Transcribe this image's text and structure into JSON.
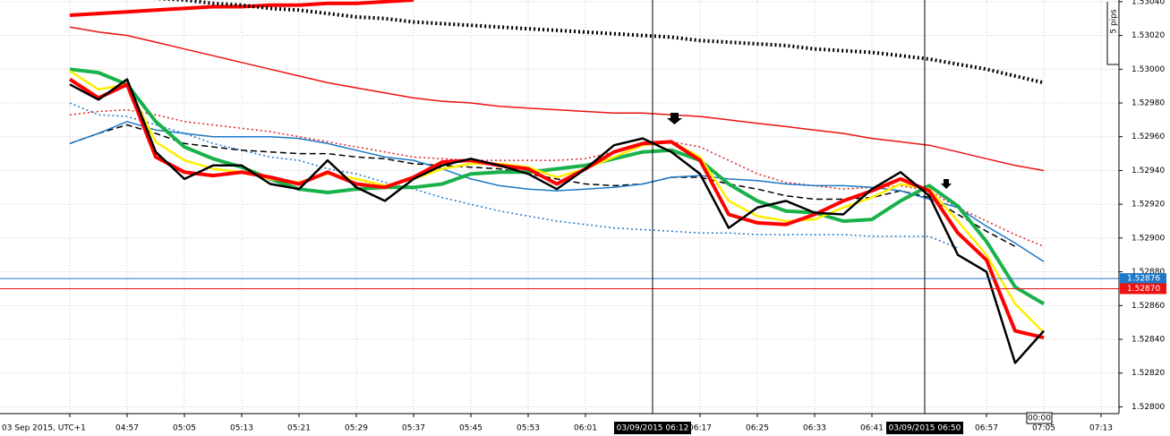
{
  "chart_data": {
    "type": "line",
    "categories": [
      "03 Sep 2015, UTC+1",
      null,
      "04:57",
      null,
      "05:05",
      null,
      "05:13",
      null,
      "05:21",
      null,
      "05:29",
      null,
      "05:37",
      null,
      "05:45",
      null,
      "05:53",
      null,
      "06:01",
      null,
      null,
      null,
      "06:17",
      null,
      "06:25",
      null,
      "06:33",
      null,
      "06:41",
      null,
      null,
      null,
      "06:57",
      null,
      "07:05",
      null,
      "07:13"
    ],
    "ylim": [
      1.52796,
      1.53041
    ],
    "yticks": [
      {
        "value": 1.5304,
        "label": "1.53040"
      },
      {
        "value": 1.5302,
        "label": "1.53020"
      },
      {
        "value": 1.53,
        "label": "1.53000"
      },
      {
        "value": 1.5298,
        "label": "1.52980"
      },
      {
        "value": 1.5296,
        "label": "1.52960"
      },
      {
        "value": 1.5294,
        "label": "1.52940"
      },
      {
        "value": 1.5292,
        "label": "1.52920"
      },
      {
        "value": 1.529,
        "label": "1.52900"
      },
      {
        "value": 1.5288,
        "label": "1.52880"
      },
      {
        "value": 1.5286,
        "label": "1.52860"
      },
      {
        "value": 1.5284,
        "label": "1.52840"
      },
      {
        "value": 1.5282,
        "label": "1.52820"
      },
      {
        "value": 1.528,
        "label": "1.52800"
      }
    ],
    "grid": true,
    "series": [
      {
        "color": "#ff0000",
        "weight": "thick",
        "style": "solid",
        "values": [
          1.53032,
          1.53033,
          1.53034,
          1.53035,
          1.53036,
          1.53037,
          1.53037,
          1.53038,
          1.53038,
          1.53039,
          1.53039,
          1.5304,
          1.53041,
          null,
          null,
          null,
          null,
          null,
          null,
          null,
          null,
          null,
          null,
          null,
          null,
          null,
          null,
          null,
          null,
          null,
          null,
          null,
          null,
          null,
          null,
          null,
          null
        ]
      },
      {
        "color": "#000000",
        "weight": "thick",
        "style": "dotted",
        "values": [
          1.53046,
          1.53045,
          1.53043,
          1.53042,
          1.53041,
          1.53039,
          1.53038,
          1.53036,
          1.53035,
          1.53033,
          1.53031,
          1.5303,
          1.53028,
          1.53027,
          1.53026,
          1.53025,
          1.53024,
          1.53023,
          1.53022,
          1.53021,
          1.5302,
          1.53019,
          1.53017,
          1.53016,
          1.53015,
          1.53014,
          1.53012,
          1.53011,
          1.5301,
          1.53008,
          1.53006,
          1.53003,
          1.53,
          1.52996,
          1.52992,
          null,
          null
        ]
      },
      {
        "color": "#ee1111",
        "weight": "thin",
        "style": "solid",
        "values": [
          1.53025,
          1.53022,
          1.5302,
          1.53016,
          1.53012,
          1.53008,
          1.53004,
          1.53,
          1.52996,
          1.52992,
          1.52989,
          1.52986,
          1.52983,
          1.52981,
          1.5298,
          1.52978,
          1.52977,
          1.52976,
          1.52975,
          1.52974,
          1.52974,
          1.52973,
          1.52972,
          1.5297,
          1.52968,
          1.52966,
          1.52964,
          1.52962,
          1.52959,
          1.52957,
          1.52955,
          1.52951,
          1.52947,
          1.52943,
          1.5294,
          null,
          null
        ]
      },
      {
        "color": "#1e78c8",
        "weight": "thin",
        "style": "dotted",
        "values": [
          1.5298,
          1.52973,
          1.52972,
          1.52967,
          1.52962,
          1.52956,
          1.52952,
          1.52948,
          1.52946,
          1.52941,
          1.52938,
          1.52933,
          1.52929,
          1.52924,
          1.5292,
          1.52916,
          1.52913,
          1.5291,
          1.52908,
          1.52906,
          1.52905,
          1.52904,
          1.52903,
          1.52903,
          1.52902,
          1.52902,
          1.52902,
          1.52902,
          1.52901,
          1.52901,
          1.52901,
          1.52894,
          null,
          null,
          null,
          null,
          null
        ]
      },
      {
        "color": "#e02020",
        "weight": "thin",
        "style": "dotted",
        "values": [
          1.52973,
          1.52975,
          1.52976,
          1.52973,
          1.52969,
          1.52967,
          1.52965,
          1.52963,
          1.5296,
          1.52957,
          1.52954,
          1.52951,
          1.52948,
          1.52947,
          1.52946,
          1.52946,
          1.52946,
          1.52946,
          1.52947,
          1.52951,
          1.52956,
          1.52957,
          1.52954,
          1.52946,
          1.52938,
          1.52933,
          1.52931,
          1.52929,
          1.5293,
          1.52931,
          1.52928,
          1.52918,
          1.5291,
          1.52902,
          1.52895,
          null,
          null
        ]
      },
      {
        "color": "#000000",
        "weight": "thin",
        "style": "dashed",
        "values": [
          1.52956,
          1.52962,
          1.52967,
          1.52962,
          1.52956,
          1.52954,
          1.52952,
          1.52951,
          1.5295,
          1.5295,
          1.52948,
          1.52947,
          1.52944,
          1.52943,
          1.52942,
          1.52941,
          1.52938,
          1.52935,
          1.52932,
          1.52931,
          1.52932,
          1.52936,
          1.52936,
          1.52932,
          1.52929,
          1.52925,
          1.52923,
          1.52923,
          1.52924,
          1.52928,
          1.52924,
          1.52914,
          1.52904,
          1.52895,
          null,
          null,
          null
        ]
      },
      {
        "color": "#1e78c8",
        "weight": "thin",
        "style": "solid",
        "values": [
          1.52956,
          1.52962,
          1.52969,
          1.52964,
          1.52962,
          1.5296,
          1.5296,
          1.5296,
          1.52959,
          1.52956,
          1.52952,
          1.52948,
          1.52946,
          1.52941,
          1.52935,
          1.52931,
          1.52929,
          1.52928,
          1.52929,
          1.5293,
          1.52932,
          1.52936,
          1.52937,
          1.52935,
          1.52934,
          1.52932,
          1.52931,
          1.52931,
          1.5293,
          1.52928,
          1.52923,
          1.52918,
          1.52907,
          1.52897,
          1.52886,
          null,
          null
        ]
      },
      {
        "color": "#19b14a",
        "weight": "thick",
        "style": "solid",
        "values": [
          1.53,
          1.52998,
          1.52991,
          1.52969,
          1.52954,
          1.52947,
          1.52942,
          1.52935,
          1.52929,
          1.52927,
          1.52929,
          1.5293,
          1.5293,
          1.52932,
          1.52938,
          1.52939,
          1.52939,
          1.52941,
          1.52943,
          1.52947,
          1.52951,
          1.52952,
          1.52946,
          1.52932,
          1.52922,
          1.52916,
          1.52915,
          1.5291,
          1.52911,
          1.52922,
          1.52931,
          1.52919,
          1.52898,
          1.52871,
          1.52861,
          null,
          null
        ]
      },
      {
        "color": "#ffee00",
        "weight": "medium",
        "style": "solid",
        "values": [
          1.52999,
          1.52988,
          1.52991,
          1.52957,
          1.52946,
          1.52941,
          1.52939,
          1.52935,
          1.52933,
          1.52938,
          1.52935,
          1.52931,
          1.52935,
          1.52941,
          1.52944,
          1.52944,
          1.52942,
          1.52936,
          1.52941,
          1.52948,
          1.52955,
          1.52957,
          1.52948,
          1.52922,
          1.52913,
          1.5291,
          1.52911,
          1.52918,
          1.52924,
          1.52932,
          1.52929,
          1.5291,
          1.5289,
          1.52861,
          1.52844,
          null,
          null
        ]
      },
      {
        "color": "#ff0000",
        "weight": "thick",
        "style": "solid",
        "values": [
          1.52994,
          1.52983,
          1.52991,
          1.52948,
          1.52939,
          1.52937,
          1.52939,
          1.52936,
          1.52932,
          1.52939,
          1.52932,
          1.5293,
          1.52936,
          1.52945,
          1.52946,
          1.52943,
          1.52941,
          1.52932,
          1.52941,
          1.52951,
          1.52956,
          1.52957,
          1.52946,
          1.52914,
          1.52909,
          1.52908,
          1.52914,
          1.52922,
          1.52928,
          1.52935,
          1.52928,
          1.52903,
          1.52887,
          1.52845,
          1.52841,
          null,
          null
        ]
      },
      {
        "color": "#000000",
        "weight": "medium",
        "style": "solid",
        "values": [
          1.52991,
          1.52982,
          1.52994,
          1.52951,
          1.52935,
          1.52943,
          1.52943,
          1.52932,
          1.52929,
          1.52946,
          1.5293,
          1.52922,
          1.52935,
          1.52943,
          1.52947,
          1.52943,
          1.52938,
          1.52929,
          1.52941,
          1.52955,
          1.52959,
          1.52951,
          1.52938,
          1.52906,
          1.52918,
          1.52922,
          1.52915,
          1.52914,
          1.52929,
          1.52939,
          1.52925,
          1.5289,
          1.5288,
          1.52826,
          1.52845,
          null,
          null
        ]
      }
    ],
    "price_lines": [
      {
        "value": 1.52876,
        "label": "1.52876",
        "color": "#1e78c8"
      },
      {
        "value": 1.5287,
        "label": "1.52870",
        "color": "#ee1111"
      }
    ],
    "crosshairs": [
      "03/09/2015 06:12",
      "03/09/2015 06:50"
    ],
    "countdown": "00:00",
    "scale_note": "5 pips"
  }
}
